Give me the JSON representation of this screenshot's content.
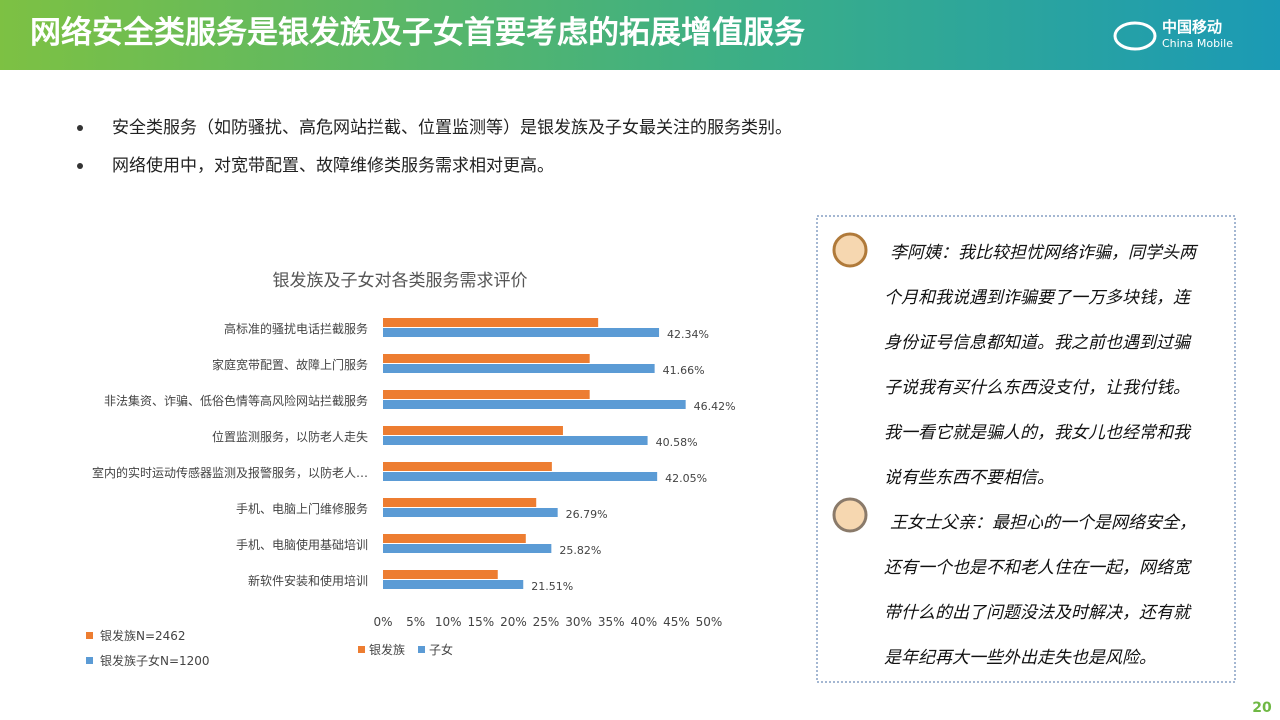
{
  "header": {
    "title": "网络安全类服务是银发族及子女首要考虑的拓展增值服务",
    "logo_cn": "中国移动",
    "logo_en": "China Mobile"
  },
  "bullets": [
    "安全类服务（如防骚扰、高危网站拦截、位置监测等）是银发族及子女最关注的服务类别。",
    "网络使用中，对宽带配置、故障维修类服务需求相对更高。"
  ],
  "chart_data": {
    "type": "bar",
    "orientation": "horizontal",
    "title": "银发族及子女对各类服务需求评价",
    "categories": [
      "高标准的骚扰电话拦截服务",
      "家庭宽带配置、故障上门服务",
      "非法集资、诈骗、低俗色情等高风险网站拦截服务",
      "位置监测服务，以防老人走失",
      "室内的实时运动传感器监测及报警服务，以防老人…",
      "手机、电脑上门维修服务",
      "手机、电脑使用基础培训",
      "新软件安装和使用培训"
    ],
    "series": [
      {
        "name": "银发族",
        "color": "#ed7d31",
        "values": [
          33.0,
          31.7,
          31.7,
          27.6,
          25.9,
          23.5,
          21.9,
          17.6
        ]
      },
      {
        "name": "子女",
        "color": "#5b9bd5",
        "values": [
          42.34,
          41.66,
          46.42,
          40.58,
          42.05,
          26.79,
          25.82,
          21.51
        ],
        "value_labels": [
          "42.34%",
          "41.66%",
          "46.42%",
          "40.58%",
          "42.05%",
          "26.79%",
          "25.82%",
          "21.51%"
        ]
      }
    ],
    "xlim": [
      0,
      50
    ],
    "xticks": [
      {
        "value": 0,
        "label": "0%"
      },
      {
        "value": 5,
        "label": "5%"
      },
      {
        "value": 10,
        "label": "10%"
      },
      {
        "value": 15,
        "label": "15%"
      },
      {
        "value": 20,
        "label": "20%"
      },
      {
        "value": 25,
        "label": "25%"
      },
      {
        "value": 30,
        "label": "30%"
      },
      {
        "value": 35,
        "label": "35%"
      },
      {
        "value": 40,
        "label": "40%"
      },
      {
        "value": 45,
        "label": "45%"
      },
      {
        "value": 50,
        "label": "50%"
      }
    ],
    "legend": "bottom"
  },
  "sample_notes": [
    "银发族N=2462",
    "银发族子女N=1200"
  ],
  "quotes": [
    {
      "lines": [
        "李阿姨：我比较担忧网络诈骗，同学头两",
        "个月和我说遇到诈骗要了一万多块钱，连",
        "身份证号信息都知道。我之前也遇到过骗",
        "子说我有买什么东西没支付，让我付钱。",
        "我一看它就是骗人的，我女儿也经常和我",
        "说有些东西不要相信。"
      ]
    },
    {
      "lines": [
        "王女士父亲：最担心的一个是网络安全，",
        "还有一个也是不和老人住在一起，网络宽",
        "带什么的出了问题没法及时解决，还有就",
        "是年纪再大一些外出走失也是风险。"
      ]
    }
  ],
  "page_number": "20"
}
